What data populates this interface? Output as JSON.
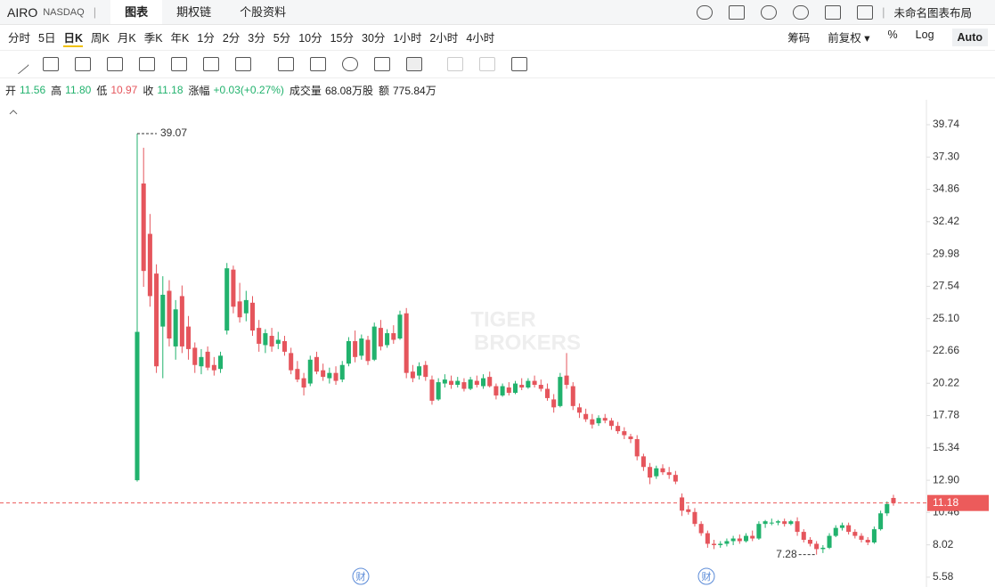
{
  "header": {
    "symbol": "AIRO",
    "exchange": "NASDAQ",
    "tabs": [
      "图表",
      "期权链",
      "个股资料"
    ],
    "layout_name": "未命名图表布局"
  },
  "periods": [
    "分时",
    "5日",
    "日K",
    "周K",
    "月K",
    "季K",
    "年K",
    "1分",
    "2分",
    "3分",
    "5分",
    "10分",
    "15分",
    "30分",
    "1小时",
    "2小时",
    "4小时"
  ],
  "options": [
    "筹码",
    "前复权 ▾",
    "%",
    "Log",
    "Auto"
  ],
  "info": [
    {
      "label": "开",
      "value": "11.56"
    },
    {
      "label": "高",
      "value": "11.80"
    },
    {
      "label": "低",
      "value": "10.97"
    },
    {
      "label": "收",
      "value": "11.18"
    },
    {
      "label": "涨幅",
      "value": "+0.03(+0.27%)"
    },
    {
      "label": "成交量",
      "value": "68.08万股"
    },
    {
      "label": "额",
      "value": "775.84万"
    }
  ],
  "event_markers": [
    "财",
    "财"
  ],
  "watermark": [
    "TIGER",
    "BROKERS"
  ],
  "chart_data": {
    "type": "candlestick",
    "up_color": "#21b26d",
    "down_color": "#e5555c",
    "last_price_color": "#ec5b5b",
    "ylim": [
      4.77,
      41.22
    ],
    "yticks": [
      39.74,
      {
        "value": 37.3,
        "label": "37.30"
      },
      34.86,
      32.42,
      29.98,
      27.54,
      {
        "value": 25.1,
        "label": "25.10"
      },
      22.66,
      20.22,
      17.78,
      15.34,
      {
        "value": 12.9,
        "label": "12.90"
      },
      10.46,
      8.02,
      5.58
    ],
    "high_label_index": 0,
    "low_label_index": 106,
    "candles": [
      [
        12.9,
        39.07,
        12.8,
        24.1
      ],
      [
        35.3,
        38.0,
        27.5,
        28.7
      ],
      [
        31.5,
        33.0,
        26.0,
        26.8
      ],
      [
        28.5,
        29.2,
        21.0,
        21.5
      ],
      [
        24.5,
        28.3,
        20.6,
        26.9
      ],
      [
        27.2,
        28.0,
        23.0,
        23.6
      ],
      [
        23.0,
        26.5,
        22.0,
        25.8
      ],
      [
        26.8,
        27.6,
        22.5,
        23.0
      ],
      [
        24.5,
        25.3,
        22.0,
        22.8
      ],
      [
        22.9,
        23.3,
        21.0,
        21.6
      ],
      [
        21.5,
        22.8,
        20.9,
        22.2
      ],
      [
        22.6,
        23.0,
        21.2,
        21.4
      ],
      [
        21.6,
        22.2,
        20.8,
        21.2
      ],
      [
        21.3,
        22.6,
        21.0,
        22.3
      ],
      [
        24.2,
        29.3,
        23.9,
        28.9
      ],
      [
        28.8,
        29.1,
        25.5,
        26.0
      ],
      [
        26.4,
        27.8,
        24.8,
        25.2
      ],
      [
        25.5,
        27.2,
        24.9,
        26.5
      ],
      [
        26.3,
        26.8,
        23.8,
        24.2
      ],
      [
        24.4,
        25.0,
        22.6,
        23.2
      ],
      [
        23.1,
        24.3,
        22.5,
        24.0
      ],
      [
        23.8,
        24.4,
        22.6,
        23.0
      ],
      [
        23.2,
        24.1,
        22.8,
        23.5
      ],
      [
        23.4,
        23.8,
        22.3,
        22.6
      ],
      [
        22.5,
        22.9,
        20.9,
        21.2
      ],
      [
        21.3,
        21.9,
        20.3,
        20.5
      ],
      [
        20.6,
        21.0,
        19.3,
        19.9
      ],
      [
        20.2,
        22.3,
        20.0,
        22.0
      ],
      [
        22.2,
        22.6,
        20.9,
        21.1
      ],
      [
        21.2,
        21.7,
        20.4,
        20.7
      ],
      [
        20.6,
        21.4,
        20.2,
        21.0
      ],
      [
        21.0,
        21.5,
        20.1,
        20.4
      ],
      [
        20.5,
        21.9,
        20.3,
        21.6
      ],
      [
        21.7,
        23.7,
        21.5,
        23.4
      ],
      [
        23.4,
        24.2,
        21.8,
        22.2
      ],
      [
        22.3,
        23.9,
        22.0,
        23.6
      ],
      [
        23.5,
        23.8,
        21.6,
        21.9
      ],
      [
        22.0,
        24.8,
        21.9,
        24.5
      ],
      [
        24.4,
        25.0,
        22.7,
        23.0
      ],
      [
        23.1,
        24.3,
        22.9,
        24.0
      ],
      [
        24.0,
        24.6,
        23.2,
        23.5
      ],
      [
        23.6,
        25.7,
        23.5,
        25.4
      ],
      [
        25.5,
        25.9,
        20.6,
        21.0
      ],
      [
        21.1,
        21.6,
        20.3,
        20.6
      ],
      [
        20.8,
        21.8,
        20.5,
        21.5
      ],
      [
        21.6,
        21.9,
        20.4,
        20.7
      ],
      [
        20.5,
        20.8,
        18.6,
        18.9
      ],
      [
        19.0,
        20.6,
        18.9,
        20.3
      ],
      [
        20.2,
        20.9,
        19.9,
        20.5
      ],
      [
        20.4,
        20.8,
        19.8,
        20.1
      ],
      [
        20.1,
        20.7,
        19.9,
        20.4
      ],
      [
        20.3,
        20.6,
        19.6,
        19.8
      ],
      [
        19.8,
        20.7,
        19.7,
        20.5
      ],
      [
        20.4,
        20.8,
        19.9,
        20.1
      ],
      [
        20.0,
        20.9,
        19.8,
        20.6
      ],
      [
        20.7,
        21.1,
        19.9,
        20.0
      ],
      [
        20.0,
        20.2,
        19.0,
        19.3
      ],
      [
        19.3,
        20.2,
        19.2,
        20.0
      ],
      [
        19.9,
        20.3,
        19.3,
        19.5
      ],
      [
        19.5,
        20.4,
        19.4,
        20.2
      ],
      [
        20.1,
        20.6,
        19.7,
        19.9
      ],
      [
        19.9,
        20.6,
        19.8,
        20.4
      ],
      [
        20.4,
        20.8,
        19.9,
        20.1
      ],
      [
        20.1,
        20.5,
        19.6,
        19.8
      ],
      [
        19.8,
        20.2,
        18.9,
        19.1
      ],
      [
        19.0,
        19.4,
        18.0,
        18.4
      ],
      [
        18.5,
        21.0,
        18.4,
        20.7
      ],
      [
        20.8,
        22.5,
        19.8,
        20.1
      ],
      [
        20.0,
        20.3,
        18.2,
        18.5
      ],
      [
        18.4,
        18.7,
        17.6,
        18.0
      ],
      [
        17.9,
        18.3,
        17.3,
        17.5
      ],
      [
        17.5,
        17.9,
        16.8,
        17.1
      ],
      [
        17.2,
        17.8,
        17.0,
        17.6
      ],
      [
        17.6,
        17.9,
        17.2,
        17.4
      ],
      [
        17.4,
        17.6,
        16.7,
        17.0
      ],
      [
        17.0,
        17.3,
        16.4,
        16.6
      ],
      [
        16.6,
        16.9,
        16.0,
        16.3
      ],
      [
        16.2,
        16.4,
        15.7,
        16.0
      ],
      [
        16.0,
        16.3,
        14.4,
        14.7
      ],
      [
        14.7,
        14.9,
        13.6,
        13.9
      ],
      [
        13.9,
        14.2,
        12.6,
        13.1
      ],
      [
        13.2,
        14.0,
        13.0,
        13.8
      ],
      [
        13.8,
        14.1,
        13.3,
        13.5
      ],
      [
        13.5,
        13.9,
        13.0,
        13.3
      ],
      [
        13.3,
        13.6,
        12.6,
        12.8
      ],
      [
        11.6,
        11.9,
        10.2,
        10.6
      ],
      [
        10.7,
        11.0,
        10.3,
        10.5
      ],
      [
        10.5,
        10.8,
        9.4,
        9.6
      ],
      [
        9.6,
        9.8,
        8.7,
        8.9
      ],
      [
        8.9,
        9.1,
        7.8,
        8.1
      ],
      [
        8.1,
        8.4,
        7.7,
        8.0
      ],
      [
        8.0,
        8.3,
        7.8,
        8.1
      ],
      [
        8.1,
        8.5,
        7.9,
        8.3
      ],
      [
        8.3,
        8.7,
        8.0,
        8.5
      ],
      [
        8.5,
        8.8,
        8.1,
        8.3
      ],
      [
        8.3,
        8.9,
        8.2,
        8.7
      ],
      [
        8.7,
        9.1,
        8.3,
        8.5
      ],
      [
        8.5,
        9.8,
        8.4,
        9.6
      ],
      [
        9.6,
        9.9,
        9.3,
        9.8
      ],
      [
        9.7,
        10.0,
        9.5,
        9.7
      ],
      [
        9.7,
        9.9,
        9.5,
        9.8
      ],
      [
        9.8,
        10.0,
        9.4,
        9.6
      ],
      [
        9.6,
        9.9,
        9.5,
        9.8
      ],
      [
        9.8,
        10.1,
        8.7,
        9.0
      ],
      [
        9.0,
        9.2,
        8.2,
        8.4
      ],
      [
        8.4,
        8.6,
        7.9,
        8.1
      ],
      [
        8.1,
        8.3,
        7.28,
        7.7
      ],
      [
        7.7,
        8.0,
        7.4,
        7.8
      ],
      [
        7.8,
        8.9,
        7.7,
        8.7
      ],
      [
        8.7,
        9.5,
        8.6,
        9.3
      ],
      [
        9.3,
        9.7,
        9.1,
        9.5
      ],
      [
        9.5,
        9.7,
        8.8,
        9.0
      ],
      [
        9.0,
        9.2,
        8.5,
        8.7
      ],
      [
        8.7,
        8.9,
        8.2,
        8.4
      ],
      [
        8.4,
        8.6,
        8.0,
        8.2
      ],
      [
        8.2,
        9.4,
        8.1,
        9.2
      ],
      [
        9.2,
        10.6,
        9.1,
        10.4
      ],
      [
        10.4,
        11.3,
        10.2,
        11.1
      ],
      [
        11.56,
        11.8,
        10.97,
        11.18
      ]
    ]
  }
}
